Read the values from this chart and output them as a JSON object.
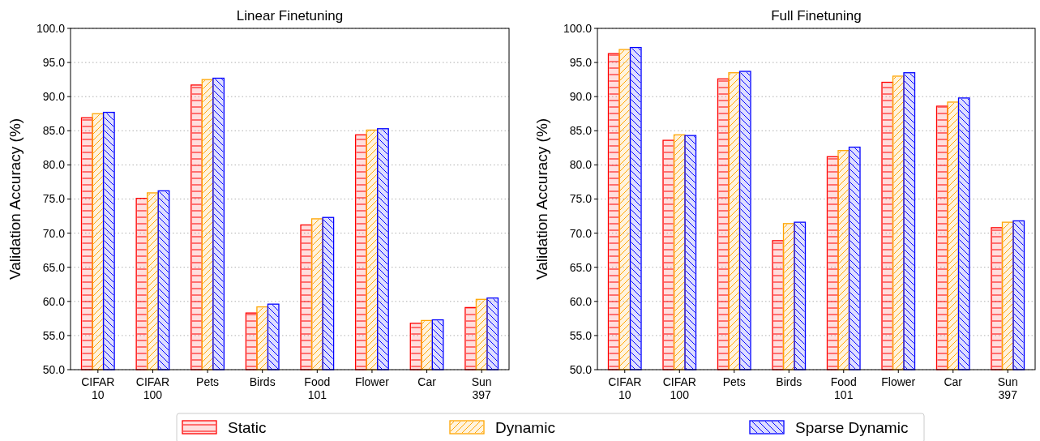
{
  "chart_data": [
    {
      "type": "bar",
      "title": "Linear Finetuning",
      "ylabel": "Validation Accuracy (%)",
      "categories": [
        "CIFAR\n10",
        "CIFAR\n100",
        "Pets",
        "Birds",
        "Food\n101",
        "Flower",
        "Car",
        "Sun\n397"
      ],
      "series": [
        {
          "name": "Static",
          "color": "#ff0000",
          "values": [
            86.9,
            75.1,
            91.7,
            58.3,
            71.2,
            84.4,
            56.8,
            59.1
          ]
        },
        {
          "name": "Dynamic",
          "color": "#ffa500",
          "values": [
            87.5,
            75.9,
            92.5,
            59.2,
            72.1,
            85.1,
            57.2,
            60.3
          ]
        },
        {
          "name": "Sparse Dynamic",
          "color": "#0000ff",
          "values": [
            87.7,
            76.2,
            92.7,
            59.6,
            72.3,
            85.3,
            57.3,
            60.5
          ]
        }
      ],
      "ylim": [
        50,
        100
      ],
      "yticks": [
        {
          "value": 50,
          "label": "50.0"
        },
        {
          "value": 55,
          "label": "55.0"
        },
        {
          "value": 60,
          "label": "60.0"
        },
        {
          "value": 65,
          "label": "65.0"
        },
        {
          "value": 70,
          "label": "70.0"
        },
        {
          "value": 75,
          "label": "75.0"
        },
        {
          "value": 80,
          "label": "80.0"
        },
        {
          "value": 85,
          "label": "85.0"
        },
        {
          "value": 90,
          "label": "90.0"
        },
        {
          "value": 95,
          "label": "95.0"
        },
        {
          "value": 100,
          "label": "100.0"
        }
      ],
      "grid": "y",
      "legend": "bottom"
    },
    {
      "type": "bar",
      "title": "Full Finetuning",
      "ylabel": "Validation Accuracy (%)",
      "categories": [
        "CIFAR\n10",
        "CIFAR\n100",
        "Pets",
        "Birds",
        "Food\n101",
        "Flower",
        "Car",
        "Sun\n397"
      ],
      "series": [
        {
          "color": "#ff0000",
          "values": [
            96.3,
            83.6,
            92.6,
            68.9,
            81.2,
            92.1,
            88.6,
            70.8
          ]
        },
        {
          "color": "#ffa500",
          "values": [
            96.9,
            84.4,
            93.5,
            71.4,
            82.1,
            93.0,
            89.2,
            71.6
          ]
        },
        {
          "color": "#0000ff",
          "values": [
            97.2,
            84.3,
            93.7,
            71.6,
            82.6,
            93.5,
            89.8,
            71.8
          ]
        }
      ],
      "ylim": [
        50,
        100
      ],
      "yticks": [
        {
          "value": 50,
          "label": "50.0"
        },
        {
          "value": 55,
          "label": "55.0"
        },
        {
          "value": 60,
          "label": "60.0"
        },
        {
          "value": 65,
          "label": "65.0"
        },
        {
          "value": 70,
          "label": "70.0"
        },
        {
          "value": 75,
          "label": "75.0"
        },
        {
          "value": 80,
          "label": "80.0"
        },
        {
          "value": 85,
          "label": "85.0"
        },
        {
          "value": 90,
          "label": "90.0"
        },
        {
          "value": 95,
          "label": "95.0"
        },
        {
          "value": 100,
          "label": "100.0"
        }
      ],
      "grid": "y"
    }
  ]
}
